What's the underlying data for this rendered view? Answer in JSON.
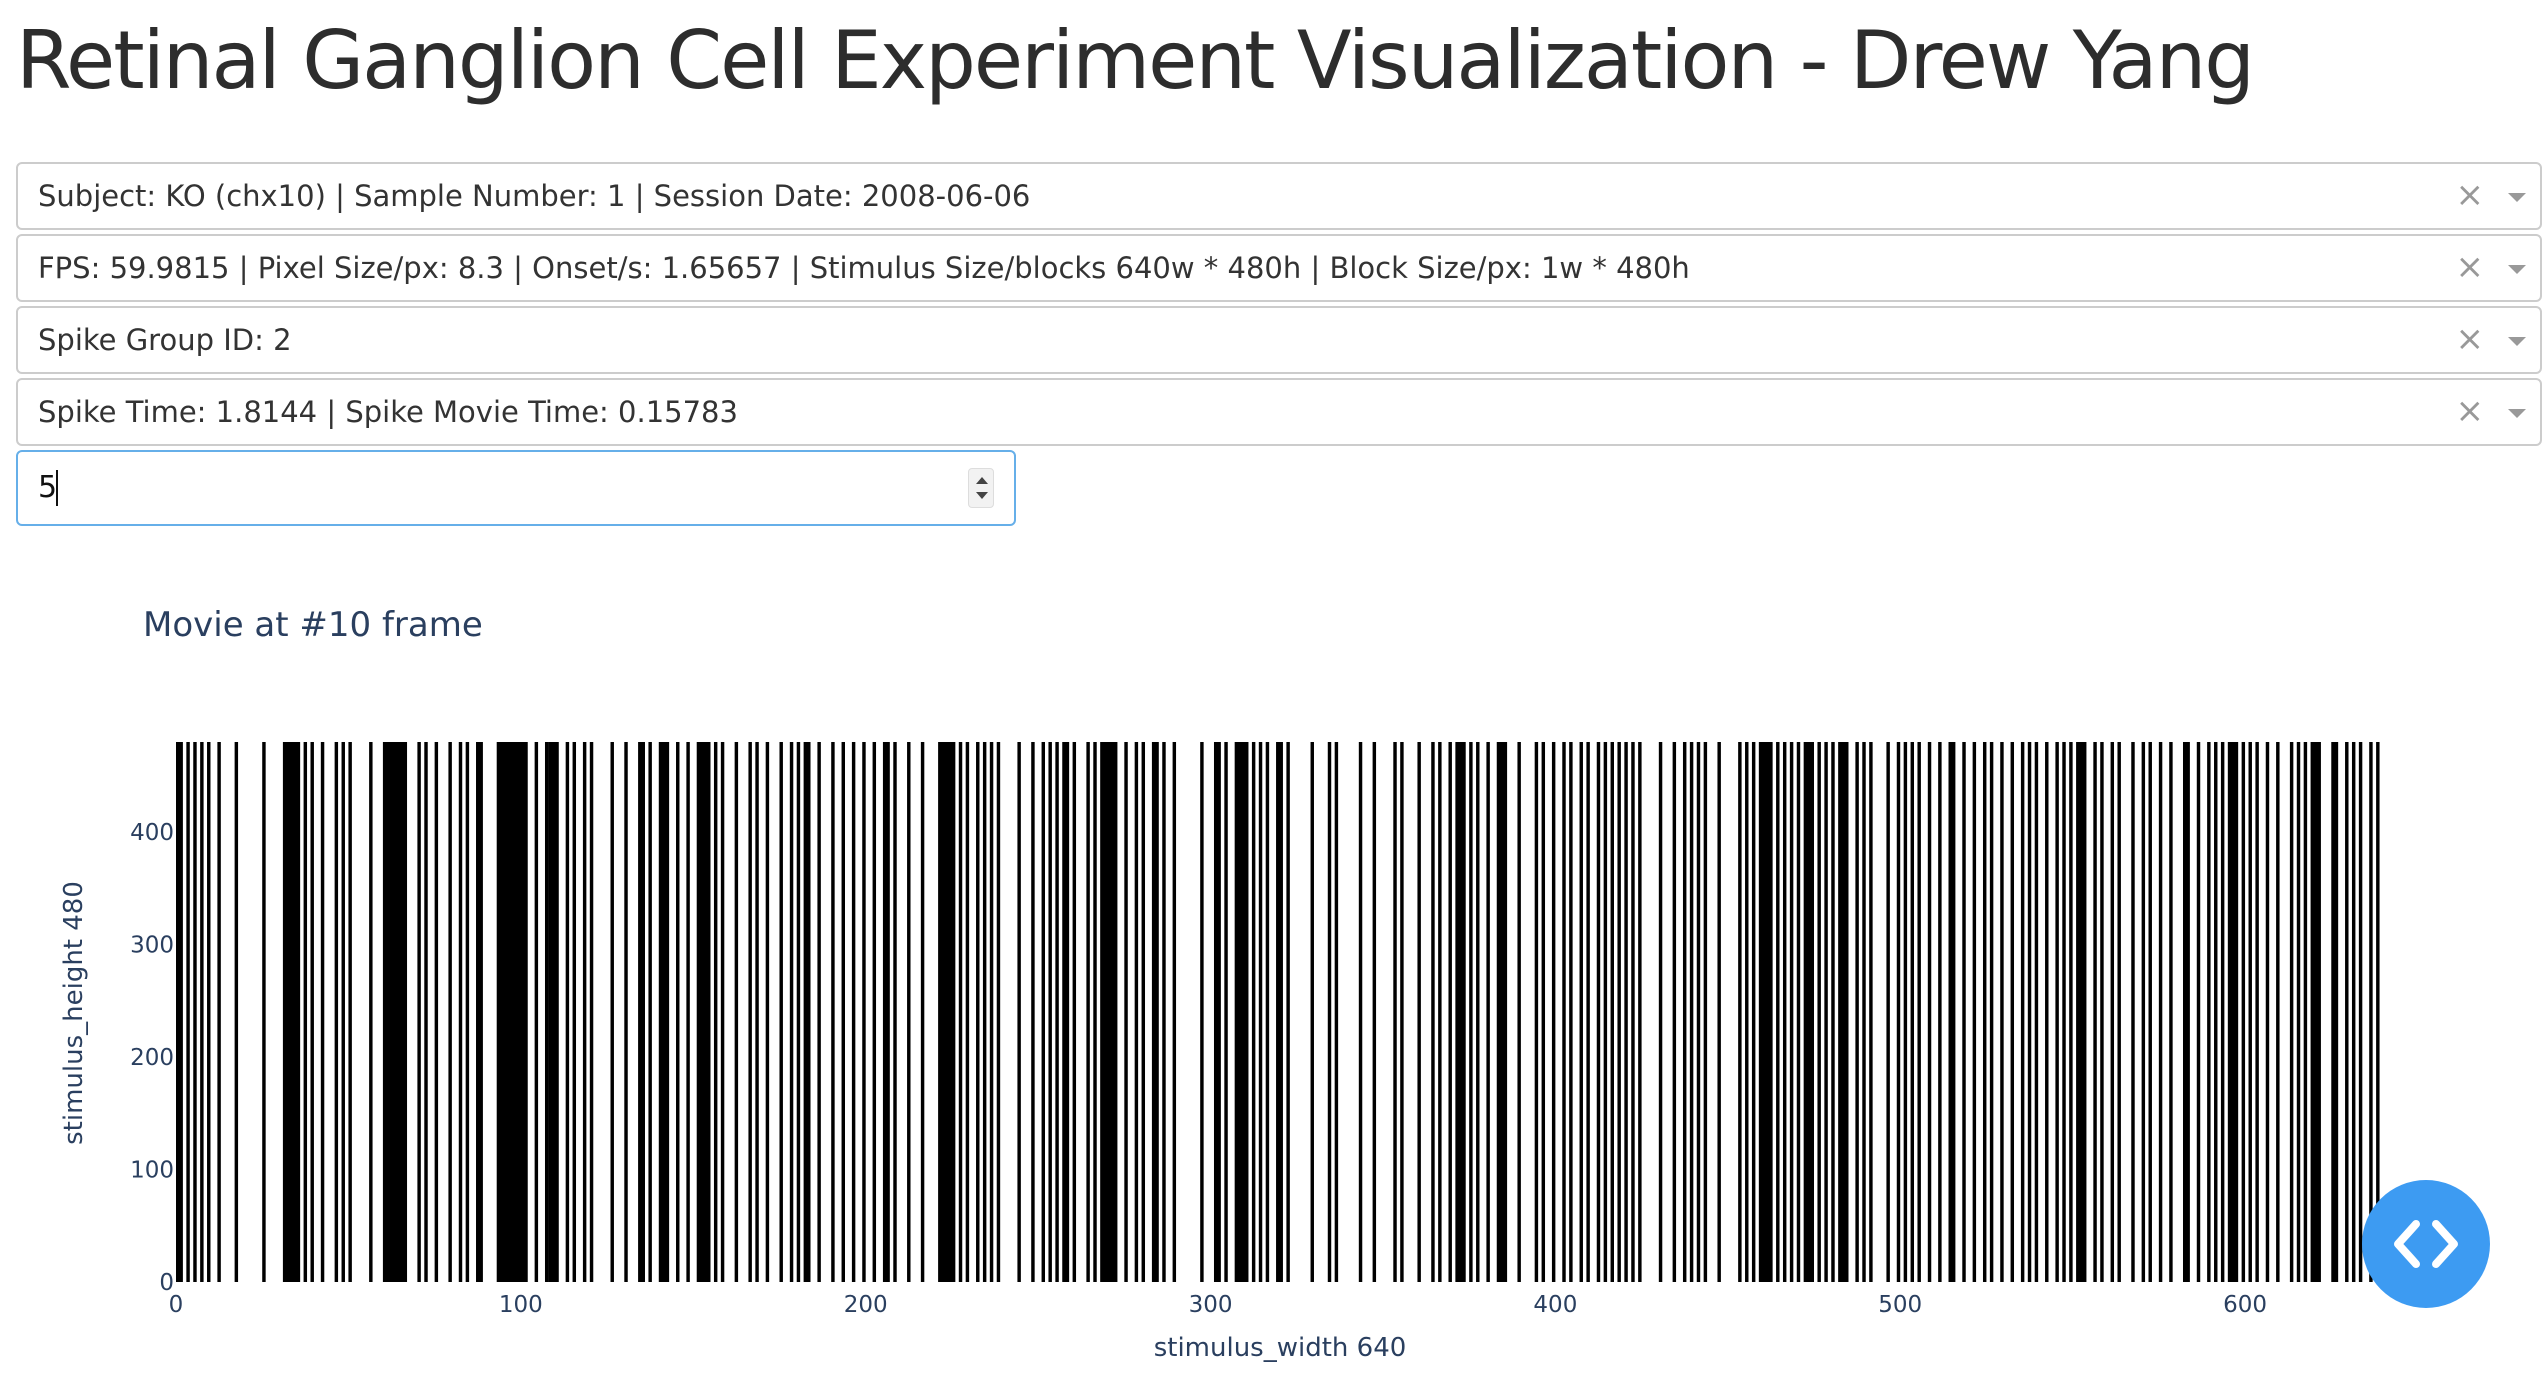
{
  "header": {
    "title": "Retinal Ganglion Cell Experiment Visualization - Drew Yang"
  },
  "dropdowns": [
    {
      "value": "Subject: KO (chx10) | Sample Number: 1 | Session Date: 2008-06-06"
    },
    {
      "value": "FPS: 59.9815 | Pixel Size/px: 8.3 | Onset/s: 1.65657 | Stimulus Size/blocks 640w * 480h | Block Size/px: 1w * 480h"
    },
    {
      "value": "Spike Group ID: 2"
    },
    {
      "value": "Spike Time: 1.8144 | Spike Movie Time: 0.15783"
    }
  ],
  "dropdown_icons": {
    "clear": "×",
    "clear_icon": "close-icon",
    "arrow_icon": "chevron-down-icon"
  },
  "frame_input": {
    "value": "5"
  },
  "fab": {
    "icon": "code-icon"
  },
  "chart_data": {
    "type": "heatmap",
    "title": "Movie at #10 frame",
    "xlabel": "stimulus_width 640",
    "ylabel": "stimulus_height 480",
    "xlim": [
      0,
      640
    ],
    "ylim": [
      0,
      480
    ],
    "x_ticks": [
      0,
      100,
      200,
      300,
      400,
      500,
      600
    ],
    "y_ticks": [
      0,
      100,
      200,
      300,
      400
    ],
    "colorscale": [
      "#ffffff",
      "#000000"
    ],
    "black_columns": [
      [
        0,
        1
      ],
      [
        3,
        3
      ],
      [
        5,
        5
      ],
      [
        7,
        7
      ],
      [
        9,
        9
      ],
      [
        12,
        12
      ],
      [
        17,
        17
      ],
      [
        25,
        25
      ],
      [
        31,
        35
      ],
      [
        37,
        37
      ],
      [
        39,
        39
      ],
      [
        42,
        42
      ],
      [
        46,
        46
      ],
      [
        48,
        48
      ],
      [
        50,
        50
      ],
      [
        56,
        56
      ],
      [
        60,
        66
      ],
      [
        70,
        70
      ],
      [
        72,
        72
      ],
      [
        75,
        75
      ],
      [
        79,
        79
      ],
      [
        82,
        82
      ],
      [
        84,
        84
      ],
      [
        87,
        88
      ],
      [
        93,
        101
      ],
      [
        104,
        104
      ],
      [
        107,
        107
      ],
      [
        108,
        110
      ],
      [
        113,
        113
      ],
      [
        115,
        115
      ],
      [
        118,
        118
      ],
      [
        120,
        120
      ],
      [
        126,
        126
      ],
      [
        130,
        130
      ],
      [
        134,
        135
      ],
      [
        137,
        137
      ],
      [
        140,
        142
      ],
      [
        145,
        145
      ],
      [
        148,
        148
      ],
      [
        151,
        154
      ],
      [
        156,
        156
      ],
      [
        158,
        158
      ],
      [
        162,
        162
      ],
      [
        166,
        166
      ],
      [
        168,
        168
      ],
      [
        171,
        171
      ],
      [
        175,
        175
      ],
      [
        178,
        178
      ],
      [
        180,
        180
      ],
      [
        182,
        183
      ],
      [
        186,
        186
      ],
      [
        190,
        190
      ],
      [
        193,
        193
      ],
      [
        196,
        196
      ],
      [
        199,
        199
      ],
      [
        202,
        202
      ],
      [
        205,
        206
      ],
      [
        208,
        208
      ],
      [
        212,
        212
      ],
      [
        216,
        216
      ],
      [
        221,
        225
      ],
      [
        227,
        227
      ],
      [
        229,
        229
      ],
      [
        232,
        232
      ],
      [
        234,
        234
      ],
      [
        236,
        236
      ],
      [
        238,
        238
      ],
      [
        244,
        244
      ],
      [
        248,
        248
      ],
      [
        251,
        251
      ],
      [
        253,
        253
      ],
      [
        255,
        255
      ],
      [
        257,
        258
      ],
      [
        260,
        260
      ],
      [
        264,
        264
      ],
      [
        266,
        266
      ],
      [
        268,
        272
      ],
      [
        275,
        275
      ],
      [
        278,
        278
      ],
      [
        280,
        280
      ],
      [
        283,
        284
      ],
      [
        286,
        286
      ],
      [
        289,
        289
      ],
      [
        297,
        297
      ],
      [
        301,
        302
      ],
      [
        304,
        304
      ],
      [
        307,
        310
      ],
      [
        312,
        312
      ],
      [
        314,
        314
      ],
      [
        316,
        316
      ],
      [
        319,
        320
      ],
      [
        322,
        322
      ],
      [
        329,
        329
      ],
      [
        334,
        334
      ],
      [
        336,
        336
      ],
      [
        343,
        343
      ],
      [
        347,
        347
      ],
      [
        353,
        353
      ],
      [
        355,
        355
      ],
      [
        360,
        360
      ],
      [
        364,
        364
      ],
      [
        366,
        366
      ],
      [
        369,
        369
      ],
      [
        371,
        373
      ],
      [
        375,
        375
      ],
      [
        377,
        377
      ],
      [
        380,
        380
      ],
      [
        383,
        385
      ],
      [
        389,
        389
      ],
      [
        394,
        394
      ],
      [
        396,
        396
      ],
      [
        399,
        399
      ],
      [
        402,
        402
      ],
      [
        404,
        404
      ],
      [
        407,
        407
      ],
      [
        409,
        409
      ],
      [
        412,
        412
      ],
      [
        414,
        414
      ],
      [
        416,
        416
      ],
      [
        418,
        418
      ],
      [
        420,
        420
      ],
      [
        422,
        422
      ],
      [
        424,
        424
      ],
      [
        430,
        430
      ],
      [
        434,
        434
      ],
      [
        437,
        437
      ],
      [
        439,
        439
      ],
      [
        441,
        441
      ],
      [
        443,
        443
      ],
      [
        447,
        447
      ],
      [
        453,
        453
      ],
      [
        455,
        455
      ],
      [
        457,
        457
      ],
      [
        459,
        462
      ],
      [
        464,
        464
      ],
      [
        466,
        466
      ],
      [
        468,
        468
      ],
      [
        470,
        470
      ],
      [
        472,
        474
      ],
      [
        476,
        476
      ],
      [
        478,
        478
      ],
      [
        480,
        480
      ],
      [
        482,
        484
      ],
      [
        487,
        487
      ],
      [
        489,
        489
      ],
      [
        491,
        491
      ],
      [
        496,
        496
      ],
      [
        499,
        499
      ],
      [
        501,
        501
      ],
      [
        503,
        503
      ],
      [
        505,
        505
      ],
      [
        508,
        508
      ],
      [
        511,
        511
      ],
      [
        514,
        515
      ],
      [
        518,
        518
      ],
      [
        521,
        521
      ],
      [
        524,
        524
      ],
      [
        526,
        526
      ],
      [
        529,
        529
      ],
      [
        532,
        532
      ],
      [
        535,
        535
      ],
      [
        537,
        537
      ],
      [
        539,
        539
      ],
      [
        542,
        542
      ],
      [
        545,
        545
      ],
      [
        547,
        547
      ],
      [
        549,
        549
      ],
      [
        551,
        553
      ],
      [
        556,
        556
      ],
      [
        558,
        558
      ],
      [
        561,
        561
      ],
      [
        563,
        563
      ],
      [
        567,
        567
      ],
      [
        570,
        570
      ],
      [
        572,
        572
      ],
      [
        575,
        575
      ],
      [
        578,
        578
      ],
      [
        582,
        583
      ],
      [
        586,
        586
      ],
      [
        589,
        589
      ],
      [
        591,
        591
      ],
      [
        593,
        593
      ],
      [
        595,
        597
      ],
      [
        599,
        599
      ],
      [
        601,
        601
      ],
      [
        603,
        603
      ],
      [
        606,
        606
      ],
      [
        609,
        609
      ],
      [
        613,
        613
      ],
      [
        615,
        615
      ],
      [
        617,
        617
      ],
      [
        619,
        621
      ],
      [
        625,
        626
      ],
      [
        629,
        629
      ],
      [
        631,
        631
      ],
      [
        633,
        633
      ],
      [
        636,
        636
      ],
      [
        638,
        638
      ]
    ]
  }
}
